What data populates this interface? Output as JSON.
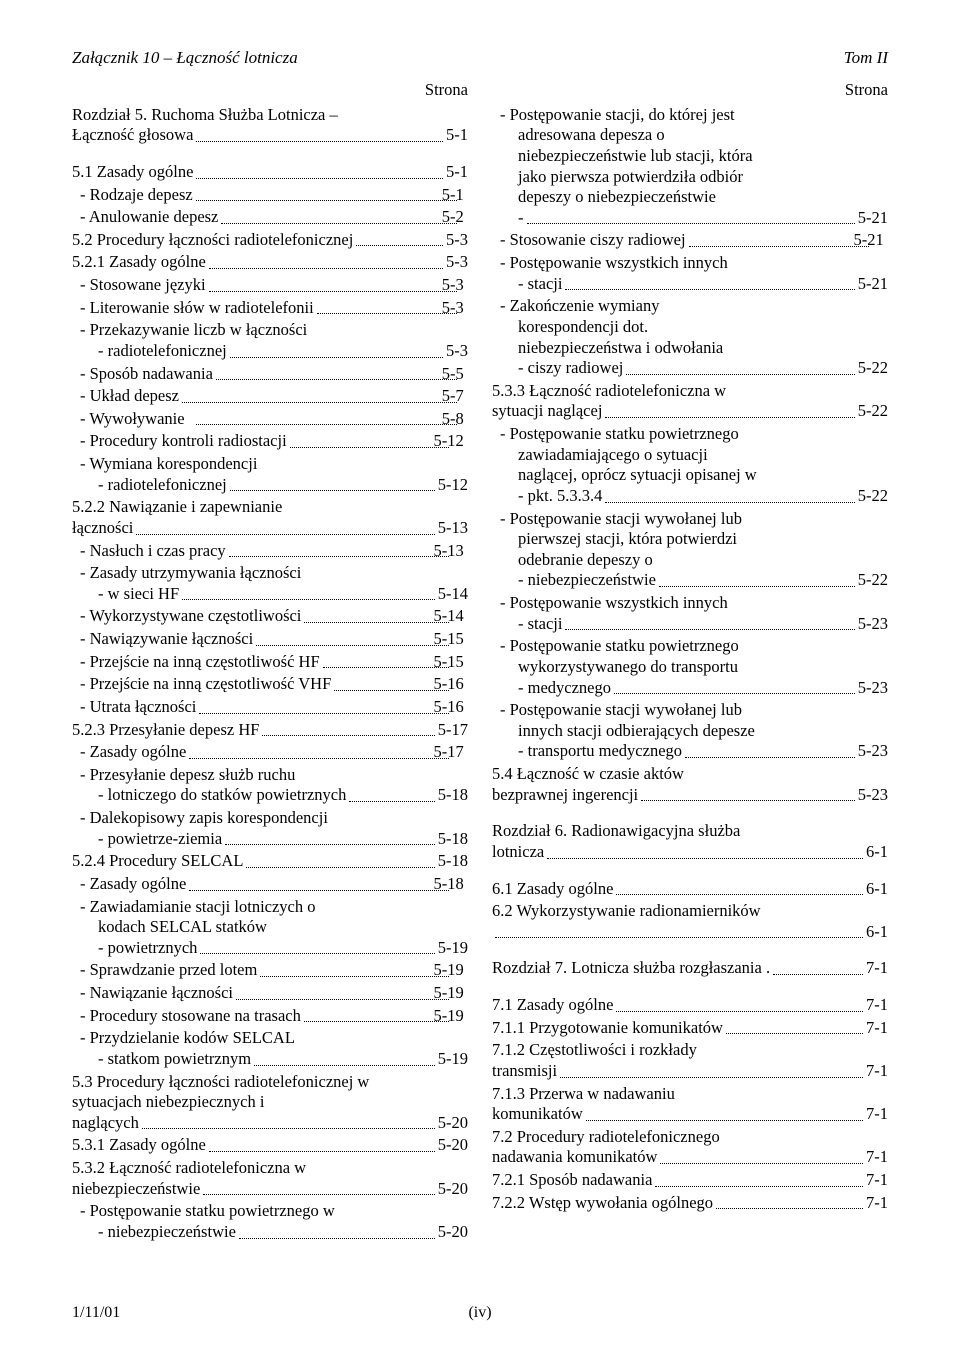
{
  "header": {
    "left": "Załącznik 10 – Łączność lotnicza",
    "right": "Tom II"
  },
  "strona_label": "Strona",
  "left_col": [
    {
      "t": "multi",
      "ind": "ind0",
      "lines": [
        "Rozdział 5. Ruchoma Służba Lotnicza –"
      ],
      "last": "Łączność głosowa",
      "page": "5-1"
    },
    {
      "t": "spacer"
    },
    {
      "t": "entry",
      "ind": "ind0",
      "label": "5.1   Zasady ogólne",
      "page": "5-1"
    },
    {
      "t": "entry",
      "ind": "ind1 ind-dash",
      "label": "Rodzaje depesz",
      "page": "5-1"
    },
    {
      "t": "entry",
      "ind": "ind1 ind-dash",
      "label": "Anulowanie depesz",
      "page": "5-2"
    },
    {
      "t": "entry",
      "ind": "ind0",
      "label": "5.2   Procedury łączności radiotelefonicznej",
      "page": "5-3"
    },
    {
      "t": "entry",
      "ind": "ind0",
      "label": "  5.2.1   Zasady ogólne",
      "page": "5-3"
    },
    {
      "t": "entry",
      "ind": "ind1 ind-dash",
      "label": "Stosowane języki",
      "page": "5-3"
    },
    {
      "t": "entry",
      "ind": "ind1 ind-dash",
      "label": "Literowanie słów w radiotelefonii",
      "page": "5-3"
    },
    {
      "t": "multi",
      "ind": "ind1 ind-dash",
      "lines": [
        "Przekazywanie liczb w łączności"
      ],
      "last": "radiotelefonicznej",
      "page": "5-3"
    },
    {
      "t": "entry",
      "ind": "ind1 ind-dash",
      "label": "Sposób nadawania",
      "page": "5-5"
    },
    {
      "t": "entry",
      "ind": "ind1 ind-dash",
      "label": "Układ depesz",
      "page": "5-7"
    },
    {
      "t": "entry",
      "ind": "ind1 ind-dash",
      "label": "Wywoływanie",
      "page": "5-8"
    },
    {
      "t": "entry",
      "ind": "ind1 ind-dash",
      "label": "Procedury kontroli radiostacji",
      "page": "5-12"
    },
    {
      "t": "multi",
      "ind": "ind1 ind-dash",
      "lines": [
        "Wymiana korespondencji"
      ],
      "last": "radiotelefonicznej",
      "page": "5-12"
    },
    {
      "t": "multi",
      "ind": "ind0",
      "lines": [
        "  5.2.2   Nawiązanie i zapewnianie"
      ],
      "last": "            łączności",
      "page": "5-13"
    },
    {
      "t": "entry",
      "ind": "ind1 ind-dash",
      "label": "Nasłuch i czas pracy",
      "page": "5-13"
    },
    {
      "t": "multi",
      "ind": "ind1 ind-dash",
      "lines": [
        "Zasady utrzymywania łączności"
      ],
      "last": "w sieci HF",
      "page": "5-14"
    },
    {
      "t": "entry",
      "ind": "ind1 ind-dash",
      "label": "Wykorzystywane częstotliwości",
      "page": "5-14"
    },
    {
      "t": "entry",
      "ind": "ind1 ind-dash",
      "label": "Nawiązywanie łączności",
      "page": "5-15"
    },
    {
      "t": "entry",
      "ind": "ind1 ind-dash",
      "label": "Przejście na inną częstotliwość HF",
      "page": "5-15"
    },
    {
      "t": "entry",
      "ind": "ind1 ind-dash",
      "label": "Przejście na inną częstotliwość VHF",
      "page": "5-16"
    },
    {
      "t": "entry",
      "ind": "ind1 ind-dash",
      "label": "Utrata łączności",
      "page": "5-16"
    },
    {
      "t": "entry",
      "ind": "ind0",
      "label": "  5.2.3   Przesyłanie depesz HF",
      "page": "5-17"
    },
    {
      "t": "entry",
      "ind": "ind1 ind-dash",
      "label": "Zasady ogólne",
      "page": "5-17"
    },
    {
      "t": "multi",
      "ind": "ind1 ind-dash",
      "lines": [
        "Przesyłanie depesz służb ruchu"
      ],
      "last": "lotniczego do statków powietrznych",
      "page": "5-18"
    },
    {
      "t": "multi",
      "ind": "ind1 ind-dash",
      "lines": [
        "Dalekopisowy zapis korespondencji"
      ],
      "last": "powietrze-ziemia",
      "page": "5-18"
    },
    {
      "t": "entry",
      "ind": "ind0",
      "label": "  5.2.4   Procedury SELCAL",
      "page": "5-18"
    },
    {
      "t": "entry",
      "ind": "ind1 ind-dash",
      "label": "Zasady ogólne",
      "page": "5-18"
    },
    {
      "t": "multi",
      "ind": "ind1 ind-dash",
      "lines": [
        "Zawiadamianie stacji lotniczych     o",
        "kodach   SELCAL statków"
      ],
      "last": "powietrznych",
      "page": "5-19"
    },
    {
      "t": "entry",
      "ind": "ind1 ind-dash",
      "label": "Sprawdzanie przed lotem",
      "page": "5-19"
    },
    {
      "t": "entry",
      "ind": "ind1 ind-dash",
      "label": "Nawiązanie łączności",
      "page": "5-19"
    },
    {
      "t": "entry",
      "ind": "ind1 ind-dash",
      "label": "Procedury stosowane na trasach",
      "page": "5-19"
    },
    {
      "t": "multi",
      "ind": "ind1 ind-dash",
      "lines": [
        "Przydzielanie kodów SELCAL"
      ],
      "last": "statkom powietrznym",
      "page": "5-19"
    },
    {
      "t": "multi",
      "ind": "ind0",
      "lines": [
        "5.3   Procedury łączności radiotelefonicznej w",
        "         sytuacjach niebezpiecznych           i"
      ],
      "last": "         naglących",
      "page": "5-20"
    },
    {
      "t": "entry",
      "ind": "ind0",
      "label": "  5.3.1   Zasady ogólne",
      "page": "5-20"
    },
    {
      "t": "multi",
      "ind": "ind0",
      "lines": [
        "  5.3.2   Łączność radiotelefoniczna w"
      ],
      "last": "            niebezpieczeństwie",
      "page": "5-20"
    },
    {
      "t": "multi",
      "ind": "ind1 ind-dash",
      "lines": [
        "Postępowanie statku powietrznego w"
      ],
      "last": "niebezpieczeństwie",
      "page": "5-20"
    }
  ],
  "right_col": [
    {
      "t": "multi",
      "ind": "ind1 ind-dash",
      "lines": [
        "Postępowanie stacji, do której jest",
        "adresowana depesza o",
        "niebezpieczeństwie lub stacji, która",
        "jako pierwsza potwierdziła odbiór",
        "depeszy o niebezpieczeństwie"
      ],
      "last": "",
      "page": "5-21"
    },
    {
      "t": "entry",
      "ind": "ind1 ind-dash",
      "label": "Stosowanie ciszy radiowej",
      "page": "5-21"
    },
    {
      "t": "multi",
      "ind": "ind1 ind-dash",
      "lines": [
        "Postępowanie wszystkich innych"
      ],
      "last": "stacji",
      "page": "5-21"
    },
    {
      "t": "multi",
      "ind": "ind1 ind-dash",
      "lines": [
        "Zakończenie wymiany",
        "korespondencji dot.",
        "niebezpieczeństwa i odwołania"
      ],
      "last": "ciszy radiowej",
      "page": "5-22"
    },
    {
      "t": "multi",
      "ind": "ind0",
      "lines": [
        "  5.3.3   Łączność radiotelefoniczna w"
      ],
      "last": "            sytuacji naglącej",
      "page": "5-22"
    },
    {
      "t": "multi",
      "ind": "ind1 ind-dash",
      "lines": [
        "Postępowanie statku powietrznego",
        "zawiadamiającego o sytuacji",
        "naglącej, oprócz sytuacji opisanej w"
      ],
      "last": "pkt. 5.3.3.4",
      "page": "5-22"
    },
    {
      "t": "multi",
      "ind": "ind1 ind-dash",
      "lines": [
        "Postępowanie stacji wywołanej lub",
        "pierwszej stacji, która potwierdzi",
        "odebranie depeszy o"
      ],
      "last": "niebezpieczeństwie",
      "page": "5-22"
    },
    {
      "t": "multi",
      "ind": "ind1 ind-dash",
      "lines": [
        "Postępowanie wszystkich innych"
      ],
      "last": "stacji",
      "page": "5-23"
    },
    {
      "t": "multi",
      "ind": "ind1 ind-dash",
      "lines": [
        "Postępowanie statku powietrznego",
        "wykorzystywanego do transportu"
      ],
      "last": "medycznego",
      "page": "5-23"
    },
    {
      "t": "multi",
      "ind": "ind1 ind-dash",
      "lines": [
        "Postępowanie stacji wywołanej lub",
        "innych stacji odbierających depesze"
      ],
      "last": "transportu medycznego",
      "page": "5-23"
    },
    {
      "t": "multi",
      "ind": "ind0",
      "lines": [
        "  5.4   Łączność w czasie aktów"
      ],
      "last": "          bezprawnej ingerencji",
      "page": "5-23"
    },
    {
      "t": "spacer"
    },
    {
      "t": "multi",
      "ind": "ind0",
      "lines": [
        "Rozdział 6. Radionawigacyjna służba"
      ],
      "last": "lotnicza",
      "page": "6-1"
    },
    {
      "t": "spacer"
    },
    {
      "t": "entry",
      "ind": "ind0",
      "label": "6.1   Zasady ogólne",
      "page": "6-1"
    },
    {
      "t": "multi",
      "ind": "ind0",
      "lines": [
        "6.2   Wykorzystywanie radionamierników"
      ],
      "last": "",
      "page": "6-1"
    },
    {
      "t": "spacer"
    },
    {
      "t": "entry",
      "ind": "ind0",
      "label": "Rozdział 7. Lotnicza służba rozgłaszania .",
      "page": "7-1"
    },
    {
      "t": "spacer"
    },
    {
      "t": "entry",
      "ind": "ind0",
      "label": "7.1   Zasady ogólne",
      "page": "7-1"
    },
    {
      "t": "entry",
      "ind": "ind0",
      "label": "  7.1.1   Przygotowanie komunikatów",
      "page": "7-1"
    },
    {
      "t": "multi",
      "ind": "ind0",
      "lines": [
        "  7.1.2   Częstotliwości i rozkłady"
      ],
      "last": "            transmisji",
      "page": "7-1"
    },
    {
      "t": "multi",
      "ind": "ind0",
      "lines": [
        "  7.1.3   Przerwa w nadawaniu"
      ],
      "last": "            komunikatów",
      "page": "7-1"
    },
    {
      "t": "multi",
      "ind": "ind0",
      "lines": [
        "  7.2   Procedury radiotelefonicznego"
      ],
      "last": "          nadawania komunikatów",
      "page": "7-1"
    },
    {
      "t": "entry",
      "ind": "ind0",
      "label": "  7.2.1   Sposób nadawania",
      "page": "7-1"
    },
    {
      "t": "entry",
      "ind": "ind0",
      "label": "  7.2.2   Wstęp wywołania ogólnego",
      "page": "7-1"
    }
  ],
  "footer": {
    "left": "1/11/01",
    "center": "(iv)"
  }
}
